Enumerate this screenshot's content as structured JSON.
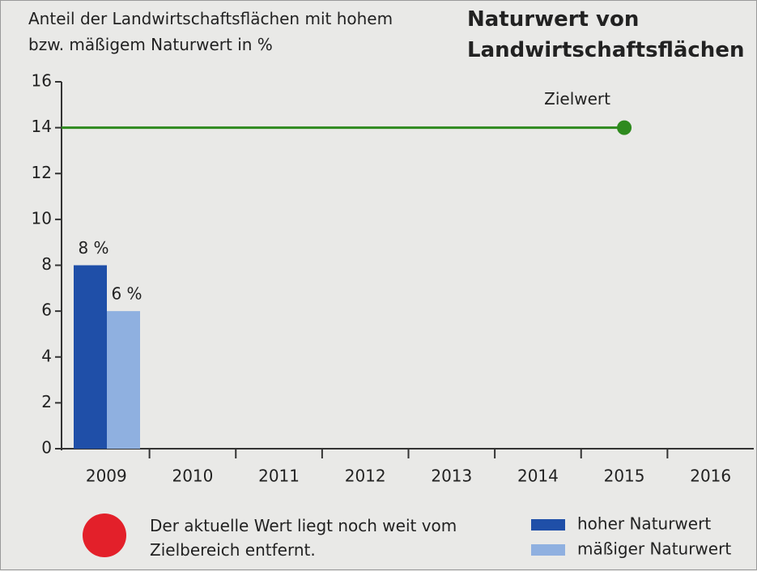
{
  "chart_data": {
    "type": "bar",
    "title": "Naturwert von Landwirtschaftsflächen",
    "y_axis_label": "Anteil der Landwirtschaftsflächen mit hohem bzw. mäßigem Naturwert in %",
    "categories": [
      "2009",
      "2010",
      "2011",
      "2012",
      "2013",
      "2014",
      "2015",
      "2016"
    ],
    "series": [
      {
        "name": "hoher Naturwert",
        "color": "#1f4fa8",
        "values": [
          8,
          null,
          null,
          null,
          null,
          null,
          null,
          null
        ],
        "value_labels": [
          "8 %",
          null,
          null,
          null,
          null,
          null,
          null,
          null
        ]
      },
      {
        "name": "mäßiger Naturwert",
        "color": "#8fb0e0",
        "values": [
          6,
          null,
          null,
          null,
          null,
          null,
          null,
          null
        ],
        "value_labels": [
          "6 %",
          null,
          null,
          null,
          null,
          null,
          null,
          null
        ]
      }
    ],
    "target": {
      "label": "Zielwert",
      "value": 14,
      "until": "2015",
      "color": "#2e8a1e"
    },
    "annotation": {
      "text": "Der aktuelle Wert liegt noch weit vom Zielbereich entfernt.",
      "color": "#e3202a"
    },
    "ylim": [
      0,
      16
    ],
    "yticks": [
      0,
      2,
      4,
      6,
      8,
      10,
      12,
      14,
      16
    ],
    "grid": false,
    "legend": "bottom-right"
  }
}
